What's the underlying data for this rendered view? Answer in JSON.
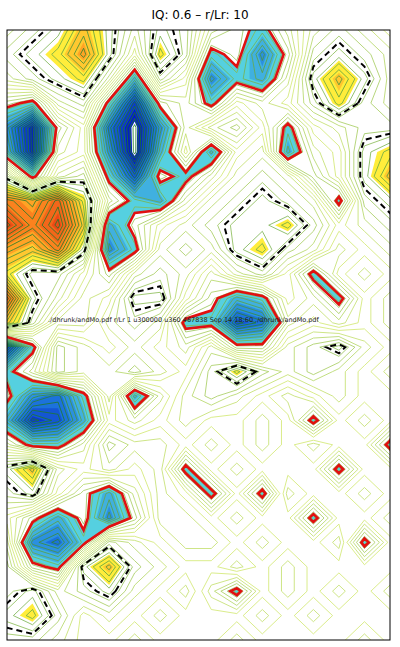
{
  "chart_data": {
    "type": "contour",
    "title": "IQ: 0.6 – r/Lr: 10",
    "annotation": "./dhrunk/andMo.pdf r/Lr 1 u300000 u360 467838 Sep 14 18:60 ./dhrunk/andMo.pdf",
    "tick_labels": false,
    "color_range": [
      -10,
      10
    ],
    "outline_levels": [
      -2.5,
      2.5
    ],
    "cells": [
      [
        1,
        2,
        3,
        5,
        3,
        1,
        3,
        2,
        -1,
        -2,
        -3,
        -1,
        1,
        2,
        1,
        0
      ],
      [
        2,
        3,
        4,
        6,
        3,
        0,
        4,
        2,
        -3,
        -2,
        -5,
        -2,
        2,
        3,
        2,
        1
      ],
      [
        1,
        2,
        3,
        4,
        1,
        -4,
        2,
        0,
        -5,
        -3,
        -4,
        -1,
        3,
        5,
        3,
        1
      ],
      [
        -2,
        -3,
        1,
        2,
        -3,
        -8,
        -2,
        -1,
        -3,
        0,
        -1,
        0,
        2,
        4,
        2,
        1
      ],
      [
        -5,
        -9,
        -2,
        0,
        -6,
        -10,
        -5,
        -1,
        1,
        2,
        0,
        -3,
        0,
        1,
        2,
        2
      ],
      [
        -4,
        -9,
        -1,
        0,
        -5,
        -10,
        -4,
        0,
        -4,
        0,
        1,
        -4,
        -1,
        0,
        3,
        4
      ],
      [
        2,
        -3,
        1,
        2,
        -3,
        -7,
        -2,
        -3,
        -1,
        1,
        2,
        1,
        -2,
        0,
        3,
        5
      ],
      [
        7,
        6,
        8,
        4,
        -1,
        -3,
        -4,
        -1,
        1,
        2,
        3,
        2,
        1,
        -3,
        2,
        3
      ],
      [
        9,
        7,
        9,
        5,
        -4,
        -2,
        0,
        1,
        2,
        3,
        3,
        4,
        2,
        0,
        1,
        2
      ],
      [
        6,
        5,
        7,
        3,
        -5,
        -3,
        1,
        2,
        1,
        3,
        4,
        2,
        1,
        -1,
        0,
        1
      ],
      [
        4,
        2,
        2,
        0,
        -2,
        1,
        2,
        1,
        -1,
        1,
        2,
        0,
        -3,
        0,
        1,
        0
      ],
      [
        8,
        3,
        1,
        -1,
        0,
        3,
        3,
        0,
        -2,
        -4,
        -3,
        0,
        -1,
        -3,
        0,
        1
      ],
      [
        5,
        2,
        -1,
        -1,
        1,
        2,
        1,
        -3,
        -3,
        -7,
        -6,
        -1,
        0,
        -1,
        0,
        1
      ],
      [
        -8,
        -3,
        2,
        1,
        0,
        1,
        0,
        -1,
        1,
        -2,
        -2,
        1,
        2,
        3,
        1,
        0
      ],
      [
        -3,
        -1,
        2,
        1,
        1,
        2,
        1,
        0,
        2,
        4,
        2,
        1,
        2,
        1,
        0,
        1
      ],
      [
        -2,
        -5,
        -6,
        -3,
        1,
        -4,
        -1,
        1,
        2,
        1,
        0,
        -1,
        0,
        1,
        0,
        0
      ],
      [
        -4,
        -8,
        -7,
        -4,
        0,
        -1,
        0,
        1,
        0,
        0,
        1,
        0,
        -3,
        0,
        1,
        0
      ],
      [
        -1,
        -3,
        -3,
        -1,
        2,
        1,
        1,
        0,
        1,
        0,
        1,
        0,
        1,
        0,
        0,
        -3
      ],
      [
        3,
        5,
        1,
        0,
        1,
        0,
        1,
        -3,
        0,
        1,
        0,
        0,
        0,
        -3,
        0,
        0
      ],
      [
        2,
        3,
        0,
        -2,
        -4,
        -1,
        1,
        0,
        -3,
        0,
        -3,
        1,
        0,
        0,
        1,
        0
      ],
      [
        0,
        -2,
        -4,
        -2,
        -5,
        -2,
        1,
        1,
        0,
        1,
        0,
        0,
        -3,
        0,
        0,
        1
      ],
      [
        1,
        -5,
        -6,
        -3,
        2,
        1,
        0,
        1,
        1,
        0,
        1,
        0,
        0,
        1,
        -3,
        0
      ],
      [
        2,
        -2,
        -3,
        3,
        5,
        2,
        1,
        0,
        0,
        1,
        0,
        1,
        0,
        0,
        0,
        0
      ],
      [
        2,
        3,
        1,
        2,
        3,
        1,
        0,
        1,
        -1,
        -3,
        0,
        1,
        0,
        1,
        0,
        1
      ],
      [
        3,
        4,
        2,
        0,
        1,
        0,
        1,
        0,
        0,
        0,
        1,
        0,
        -1,
        0,
        0,
        0
      ],
      [
        2,
        2,
        1,
        0,
        0,
        1,
        0,
        0,
        0,
        1,
        0,
        0,
        0,
        0,
        1,
        0
      ]
    ]
  }
}
